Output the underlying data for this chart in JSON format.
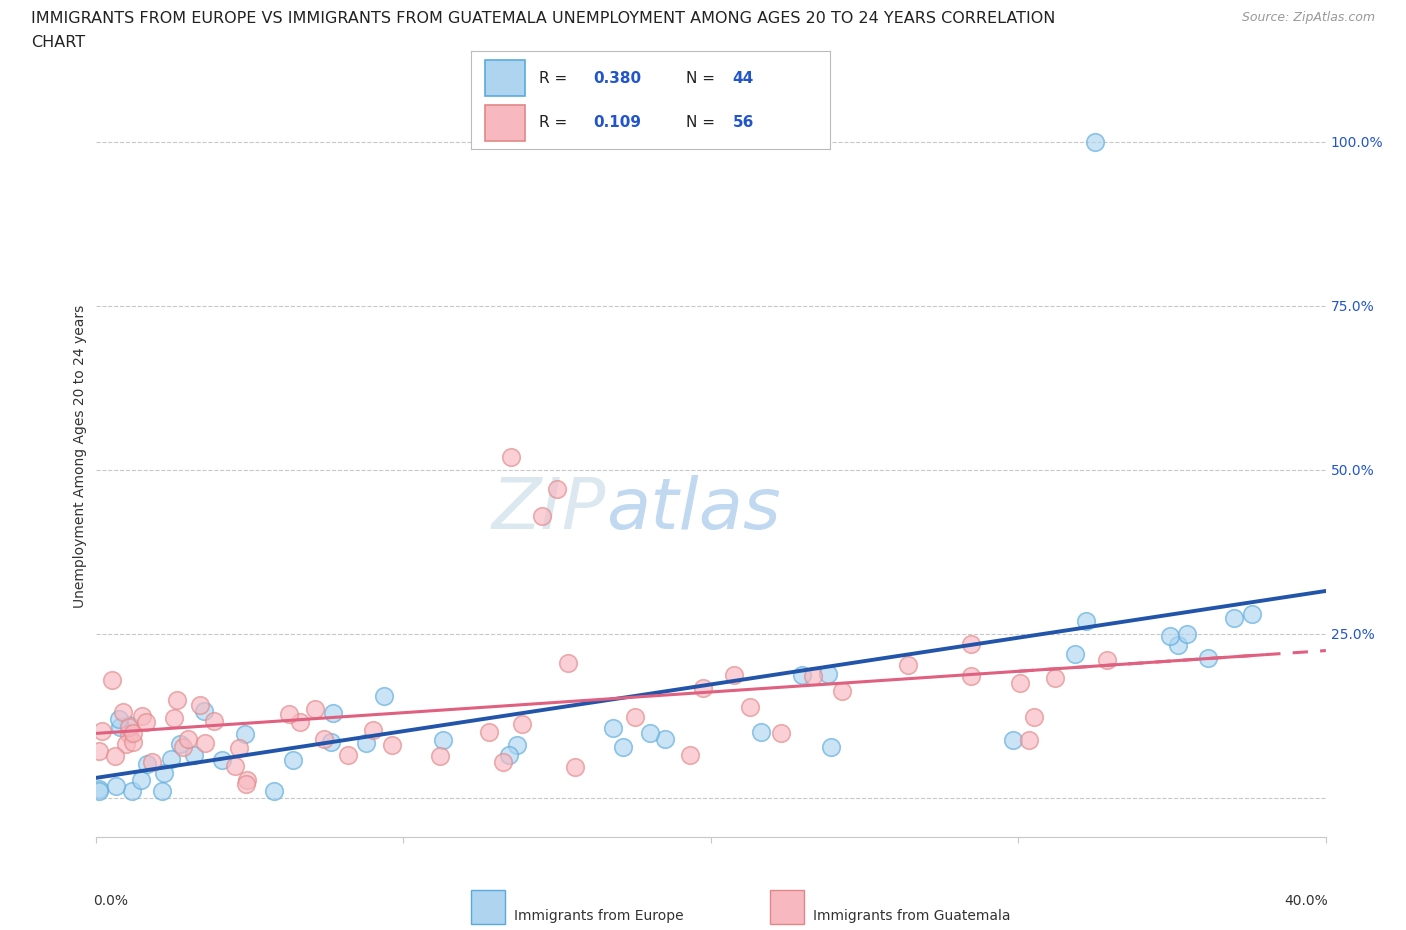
{
  "title_line1": "IMMIGRANTS FROM EUROPE VS IMMIGRANTS FROM GUATEMALA UNEMPLOYMENT AMONG AGES 20 TO 24 YEARS CORRELATION",
  "title_line2": "CHART",
  "source_text": "Source: ZipAtlas.com",
  "ylabel": "Unemployment Among Ages 20 to 24 years",
  "xlim": [
    0.0,
    0.4
  ],
  "ylim_low": -0.06,
  "ylim_high": 1.1,
  "ytick_positions": [
    0.0,
    0.25,
    0.5,
    0.75,
    1.0
  ],
  "ytick_labels_right": [
    "",
    "25.0%",
    "50.0%",
    "75.0%",
    "100.0%"
  ],
  "europe_color_fill": "#aed4f0",
  "europe_color_edge": "#5aabdc",
  "europe_line_color": "#2255aa",
  "guatemala_color_fill": "#f8b8c0",
  "guatemala_color_edge": "#e08888",
  "guatemala_line_color": "#e06080",
  "legend_r1": "0.380",
  "legend_n1": "44",
  "legend_r2": "0.109",
  "legend_n2": "56",
  "legend_text_color": "#2255cc",
  "watermark_zip": "ZIP",
  "watermark_atlas": "atlas",
  "watermark_color_zip": "#d8e8f4",
  "watermark_color_atlas": "#b8d0f0",
  "grid_color": "#c8c8c8",
  "bg_color": "#ffffff",
  "bottom_legend_europe": "Immigrants from Europe",
  "bottom_legend_guatemala": "Immigrants from Guatemala",
  "title_fontsize": 11.5,
  "axis_label_fontsize": 10,
  "legend_fontsize": 11,
  "tick_label_fontsize": 10
}
